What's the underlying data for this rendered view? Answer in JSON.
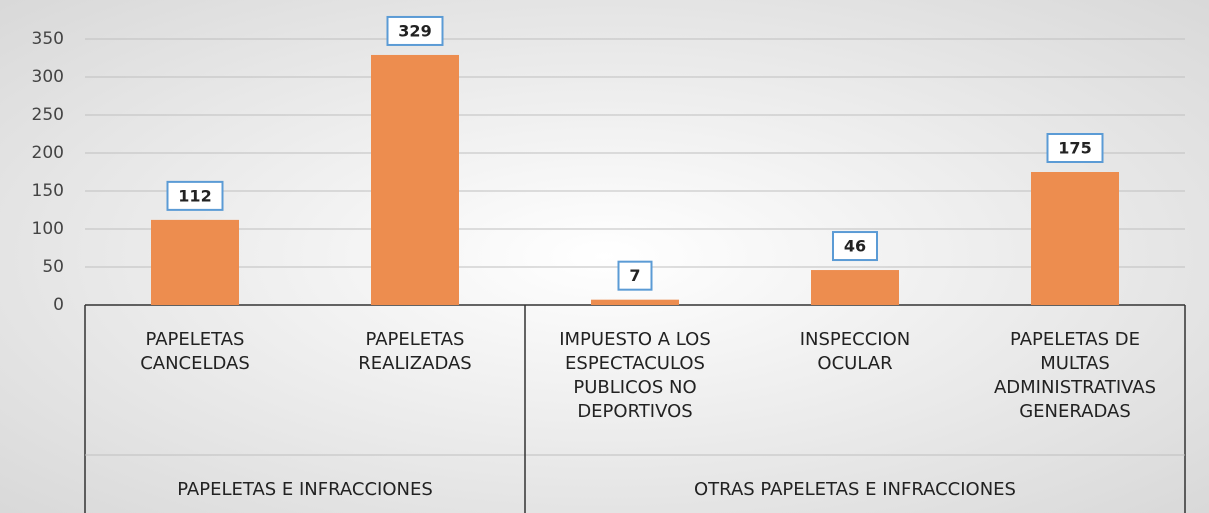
{
  "chart_data": {
    "type": "bar",
    "color": "#ed8d4f",
    "groups": [
      {
        "name": "PAPELETAS E INFRACCIONES",
        "categories": [
          "PAPELETAS\nCANCELDAS",
          "PAPELETAS\nREALIZADAS"
        ],
        "values": [
          112,
          329
        ]
      },
      {
        "name": "OTRAS PAPELETAS E INFRACCIONES",
        "categories": [
          "IMPUESTO A LOS\nESPECTACULOS\nPUBLICOS NO\nDEPORTIVOS",
          "INSPECCION\nOCULAR",
          "PAPELETAS DE\nMULTAS\nADMINISTRATIVAS\nGENERADAS"
        ],
        "values": [
          7,
          46,
          175
        ]
      }
    ],
    "ylim": [
      0,
      350
    ],
    "yticks": [
      0,
      50,
      100,
      150,
      200,
      250,
      300,
      350
    ],
    "grid": true
  }
}
